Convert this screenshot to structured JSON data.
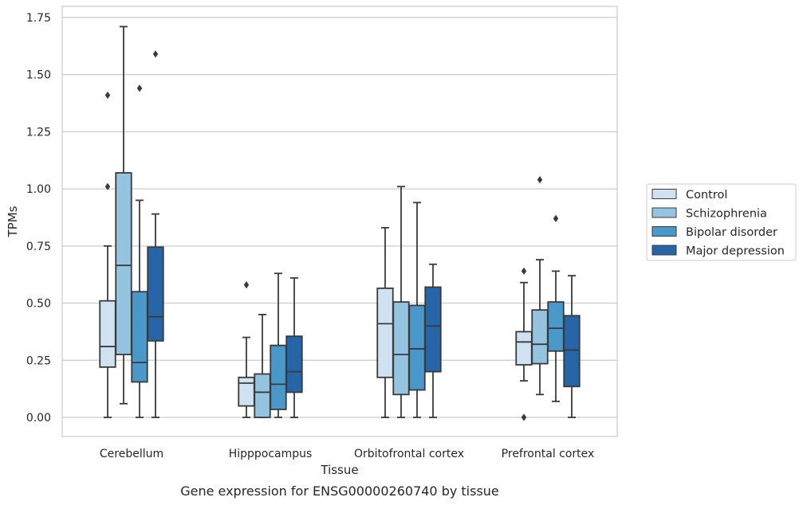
{
  "caption": "Gene expression for ENSG00000260740 by tissue",
  "chart_data": {
    "type": "box",
    "xlabel": "Tissue",
    "ylabel": "TPMs",
    "ylim": [
      -0.085,
      1.8
    ],
    "yticks": [
      0.0,
      0.25,
      0.5,
      0.75,
      1.0,
      1.25,
      1.5,
      1.75
    ],
    "ytick_labels": [
      "0.00",
      "0.25",
      "0.50",
      "0.75",
      "1.00",
      "1.25",
      "1.50",
      "1.75"
    ],
    "grid": "horizontal",
    "legend_placement": "right",
    "categories": [
      "Cerebellum",
      "Hipppocampus",
      "Orbitofrontal cortex",
      "Prefrontal cortex"
    ],
    "series": [
      {
        "name": "Control",
        "color": "#d0e1f2",
        "boxes": [
          {
            "whislo": 0.0,
            "q1": 0.22,
            "med": 0.31,
            "q3": 0.51,
            "whishi": 0.75,
            "fliers": [
              1.01,
              1.41
            ]
          },
          {
            "whislo": 0.0,
            "q1": 0.05,
            "med": 0.15,
            "q3": 0.175,
            "whishi": 0.35,
            "fliers": [
              0.58
            ]
          },
          {
            "whislo": 0.0,
            "q1": 0.175,
            "med": 0.41,
            "q3": 0.565,
            "whishi": 0.83,
            "fliers": []
          },
          {
            "whislo": 0.16,
            "q1": 0.23,
            "med": 0.33,
            "q3": 0.375,
            "whishi": 0.59,
            "fliers": [
              0.0,
              0.64
            ]
          }
        ]
      },
      {
        "name": "Schizophrenia",
        "color": "#94c4df",
        "boxes": [
          {
            "whislo": 0.06,
            "q1": 0.275,
            "med": 0.665,
            "q3": 1.07,
            "whishi": 1.71,
            "fliers": []
          },
          {
            "whislo": 0.0,
            "q1": 0.0,
            "med": 0.11,
            "q3": 0.19,
            "whishi": 0.45,
            "fliers": []
          },
          {
            "whislo": 0.0,
            "q1": 0.1,
            "med": 0.275,
            "q3": 0.505,
            "whishi": 1.01,
            "fliers": []
          },
          {
            "whislo": 0.1,
            "q1": 0.235,
            "med": 0.32,
            "q3": 0.47,
            "whishi": 0.69,
            "fliers": [
              1.04
            ]
          }
        ]
      },
      {
        "name": "Bipolar disorder",
        "color": "#4a98c9",
        "boxes": [
          {
            "whislo": 0.0,
            "q1": 0.155,
            "med": 0.24,
            "q3": 0.55,
            "whishi": 0.95,
            "fliers": [
              1.44
            ]
          },
          {
            "whislo": 0.0,
            "q1": 0.035,
            "med": 0.145,
            "q3": 0.315,
            "whishi": 0.63,
            "fliers": []
          },
          {
            "whislo": 0.0,
            "q1": 0.12,
            "med": 0.3,
            "q3": 0.49,
            "whishi": 0.94,
            "fliers": []
          },
          {
            "whislo": 0.07,
            "q1": 0.29,
            "med": 0.39,
            "q3": 0.505,
            "whishi": 0.64,
            "fliers": [
              0.87
            ]
          }
        ]
      },
      {
        "name": "Major depression",
        "color": "#2565a8",
        "boxes": [
          {
            "whislo": 0.0,
            "q1": 0.335,
            "med": 0.44,
            "q3": 0.745,
            "whishi": 0.89,
            "fliers": [
              1.59
            ]
          },
          {
            "whislo": 0.0,
            "q1": 0.11,
            "med": 0.2,
            "q3": 0.355,
            "whishi": 0.61,
            "fliers": []
          },
          {
            "whislo": 0.0,
            "q1": 0.2,
            "med": 0.4,
            "q3": 0.57,
            "whishi": 0.67,
            "fliers": []
          },
          {
            "whislo": 0.0,
            "q1": 0.135,
            "med": 0.295,
            "q3": 0.445,
            "whishi": 0.62,
            "fliers": []
          }
        ]
      }
    ]
  }
}
